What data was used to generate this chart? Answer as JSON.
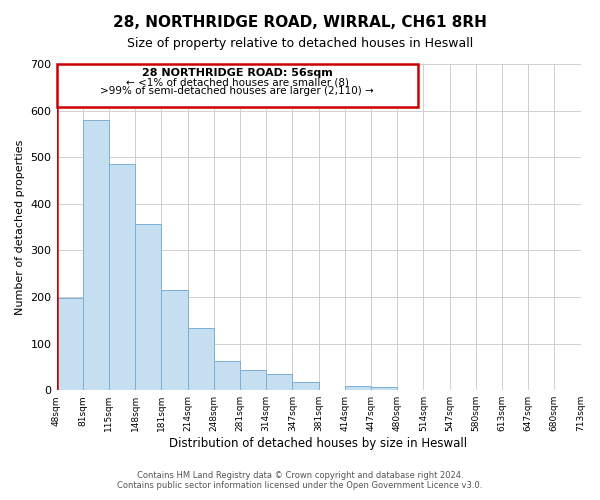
{
  "title": "28, NORTHRIDGE ROAD, WIRRAL, CH61 8RH",
  "subtitle": "Size of property relative to detached houses in Heswall",
  "xlabel": "Distribution of detached houses by size in Heswall",
  "ylabel": "Number of detached properties",
  "bin_labels": [
    "48sqm",
    "81sqm",
    "115sqm",
    "148sqm",
    "181sqm",
    "214sqm",
    "248sqm",
    "281sqm",
    "314sqm",
    "347sqm",
    "381sqm",
    "414sqm",
    "447sqm",
    "480sqm",
    "514sqm",
    "547sqm",
    "580sqm",
    "613sqm",
    "647sqm",
    "680sqm",
    "713sqm"
  ],
  "bar_heights": [
    197,
    580,
    486,
    357,
    216,
    134,
    63,
    44,
    35,
    17,
    0,
    10,
    6,
    0,
    0,
    0,
    0,
    0,
    0,
    0
  ],
  "bar_color": "#c5dff0",
  "bar_edge_color": "#7ab0d4",
  "annotation_title": "28 NORTHRIDGE ROAD: 56sqm",
  "annotation_line1": "← <1% of detached houses are smaller (8)",
  "annotation_line2": ">99% of semi-detached houses are larger (2,110) →",
  "annotation_box_color": "#ffffff",
  "annotation_box_edge": "#cc0000",
  "property_line_color": "#cc0000",
  "ylim": [
    0,
    700
  ],
  "yticks": [
    0,
    100,
    200,
    300,
    400,
    500,
    600,
    700
  ],
  "footer_line1": "Contains HM Land Registry data © Crown copyright and database right 2024.",
  "footer_line2": "Contains public sector information licensed under the Open Government Licence v3.0.",
  "background_color": "#ffffff",
  "grid_color": "#d0d0d0"
}
